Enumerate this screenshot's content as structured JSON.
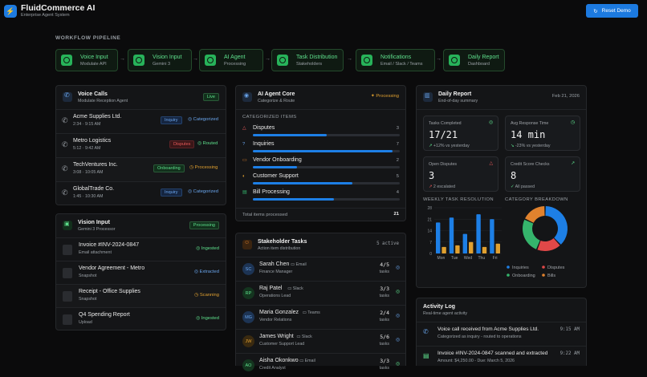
{
  "app": {
    "title": "FluidCommerce AI",
    "subtitle": "Enterprise Agent System",
    "reset_label": "Reset Demo"
  },
  "pipeline": {
    "title": "WORKFLOW PIPELINE",
    "steps": [
      {
        "label": "Voice Input",
        "sub": "Modulate API"
      },
      {
        "label": "Vision Input",
        "sub": "Gemini 3"
      },
      {
        "label": "AI Agent",
        "sub": "Processing"
      },
      {
        "label": "Task Distribution",
        "sub": "Stakeholders"
      },
      {
        "label": "Notifications",
        "sub": "Email / Slack / Teams"
      },
      {
        "label": "Daily Report",
        "sub": "Dashboard"
      }
    ]
  },
  "voice": {
    "title": "Voice Calls",
    "sub": "Modulate Reception Agent",
    "badge": "Live",
    "calls": [
      {
        "name": "Acme Supplies Ltd.",
        "time": "2:34 · 9:15 AM",
        "tag": "Inquiry",
        "status": "Categorized"
      },
      {
        "name": "Metro Logistics",
        "time": "5:12 · 9:42 AM",
        "tag": "Disputes",
        "status": "Routed"
      },
      {
        "name": "TechVentures Inc.",
        "time": "3:08 · 10:05 AM",
        "tag": "Onboarding",
        "status": "Processing"
      },
      {
        "name": "GlobalTrade Co.",
        "time": "1:45 · 10:30 AM",
        "tag": "Inquiry",
        "status": "Categorized"
      }
    ]
  },
  "vision": {
    "title": "Vision Input",
    "sub": "Gemini 3 Processor",
    "badge": "Processing",
    "docs": [
      {
        "name": "Invoice #INV-2024-0847",
        "src": "Email attachment",
        "status": "Ingested"
      },
      {
        "name": "Vendor Agreement - Metro",
        "src": "Snapshot",
        "status": "Extracted"
      },
      {
        "name": "Receipt - Office Supplies",
        "src": "Snapshot",
        "status": "Scanning"
      },
      {
        "name": "Q4 Spending Report",
        "src": "Upload",
        "status": "Ingested"
      }
    ]
  },
  "agent": {
    "title": "AI Agent Core",
    "sub": "Categorize & Route",
    "status": "Processing",
    "section": "CATEGORIZED ITEMS",
    "items": [
      {
        "name": "Disputes",
        "count": "3",
        "fill": 0.5
      },
      {
        "name": "Inquiries",
        "count": "7",
        "fill": 0.95
      },
      {
        "name": "Vendor Onboarding",
        "count": "2",
        "fill": 0.3
      },
      {
        "name": "Customer Support",
        "count": "5",
        "fill": 0.68
      },
      {
        "name": "Bill Processing",
        "count": "4",
        "fill": 0.55
      }
    ],
    "total_label": "Total items processed",
    "total": "21"
  },
  "tasks": {
    "title": "Stakeholder Tasks",
    "sub": "Action item distribution",
    "count": "5 active",
    "people": [
      {
        "initials": "SC",
        "name": "Sarah Chen",
        "channel": "Email",
        "role": "Finance Manager",
        "done": "4/5",
        "unit": "tasks"
      },
      {
        "initials": "RP",
        "name": "Raj Patel",
        "channel": "Slack",
        "role": "Operations Lead",
        "done": "3/3",
        "unit": "tasks"
      },
      {
        "initials": "MG",
        "name": "Maria Gonzalez",
        "channel": "Teams",
        "role": "Vendor Relations",
        "done": "2/4",
        "unit": "tasks"
      },
      {
        "initials": "JW",
        "name": "James Wright",
        "channel": "Slack",
        "role": "Customer Support Lead",
        "done": "5/6",
        "unit": "tasks"
      },
      {
        "initials": "AO",
        "name": "Aisha Okonkwo",
        "channel": "Email",
        "role": "Credit Analyst",
        "done": "3/3",
        "unit": "tasks"
      }
    ]
  },
  "report": {
    "title": "Daily Report",
    "sub": "End-of-day summary",
    "date": "Feb 21, 2026",
    "kpis": [
      {
        "label": "Tasks Completed",
        "value": "17/21",
        "delta": "+12% vs yesterday"
      },
      {
        "label": "Avg Response Time",
        "value": "14 min",
        "delta": "-23% vs yesterday"
      },
      {
        "label": "Open Disputes",
        "value": "3",
        "delta": "2 escalated"
      },
      {
        "label": "Credit Score Checks",
        "value": "8",
        "delta": "All passed"
      }
    ],
    "weekly_title": "WEEKLY TASK RESOLUTION",
    "breakdown_title": "CATEGORY BREAKDOWN"
  },
  "chart_data": [
    {
      "type": "bar",
      "title": "WEEKLY TASK RESOLUTION",
      "categories": [
        "Mon",
        "Tue",
        "Wed",
        "Thu",
        "Fri"
      ],
      "yticks": [
        "28",
        "21",
        "14",
        "7",
        "0"
      ],
      "ylim": [
        0,
        28
      ],
      "series": [
        {
          "values": [
            19,
            22,
            12,
            24,
            21
          ],
          "color": "#1d7fe6"
        },
        {
          "values": [
            4,
            5,
            7,
            4,
            6
          ],
          "color": "#e0a030"
        }
      ]
    },
    {
      "type": "pie",
      "title": "CATEGORY BREAKDOWN",
      "labels": [
        "Inquiries",
        "Disputes",
        "Onboarding",
        "Bills"
      ],
      "values": [
        38,
        18,
        26,
        18
      ],
      "colors": [
        "#1d7fe6",
        "#e04848",
        "#35b46c",
        "#e0822e"
      ]
    }
  ],
  "activity": {
    "title": "Activity Log",
    "sub": "Real-time agent activity",
    "entries": [
      {
        "text": "Voice call received from Acme Supplies Ltd.",
        "detail": "Categorized as inquiry - routed to operations",
        "time": "9:15 AM"
      },
      {
        "text": "Invoice #INV-2024-0847 scanned and extracted",
        "detail": "Amount: $4,250.00 - Due: March 5, 2026",
        "time": "9:22 AM"
      }
    ]
  }
}
